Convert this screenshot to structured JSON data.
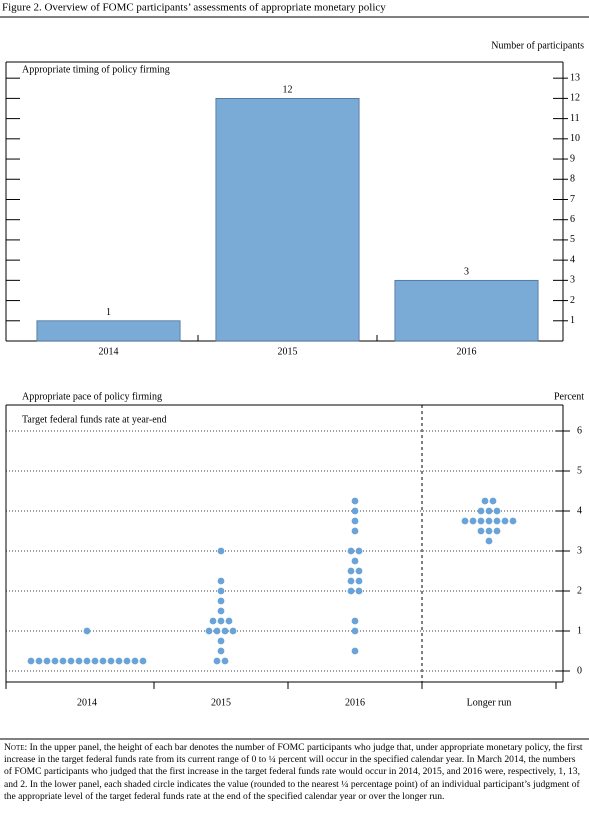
{
  "figure_title": "Figure 2. Overview of FOMC participants’ assessments of appropriate monetary policy",
  "chart_data": [
    {
      "type": "bar",
      "title": "Appropriate timing of policy firming",
      "y_label": "Number of participants",
      "categories": [
        "2014",
        "2015",
        "2016"
      ],
      "values": [
        1,
        12,
        3
      ],
      "color": "#7aaad6",
      "ylim": [
        0,
        13.8
      ],
      "yticks": [
        1,
        2,
        3,
        4,
        5,
        6,
        7,
        8,
        9,
        10,
        11,
        12,
        13
      ]
    },
    {
      "type": "dot",
      "title": "Appropriate pace of policy firming",
      "subtitle": "Target federal funds rate at year-end",
      "y_label": "Percent",
      "categories": [
        "2014",
        "2015",
        "2016",
        "Longer run"
      ],
      "values": [
        [
          1,
          0.25,
          0.25,
          0.25,
          0.25,
          0.25,
          0.25,
          0.25,
          0.25,
          0.25,
          0.25,
          0.25,
          0.25,
          0.25,
          0.25,
          0.25
        ],
        [
          3,
          2.25,
          2,
          1.75,
          1.5,
          1.25,
          1.25,
          1.25,
          1,
          1,
          1,
          1,
          0.75,
          0.5,
          0.25,
          0.25
        ],
        [
          4.25,
          4,
          3.75,
          3.5,
          3,
          3,
          2.75,
          2.5,
          2.5,
          2.25,
          2.25,
          2,
          2,
          1.25,
          1,
          0.5
        ],
        [
          4.25,
          4.25,
          4,
          4,
          4,
          3.75,
          3.75,
          3.75,
          3.75,
          3.75,
          3.75,
          3.75,
          3.5,
          3.5,
          3.5,
          3.25
        ]
      ],
      "color": "#6aa3d8",
      "grid": true,
      "ylim": [
        -0.275,
        6.65
      ],
      "yticks": [
        0,
        1,
        2,
        3,
        4,
        5,
        6
      ]
    }
  ],
  "note_label": "Note:",
  "note": "In the upper panel, the height of each bar denotes the number of FOMC participants who judge that, under appropriate monetary policy, the first increase in the target federal funds rate from its current range of 0 to ¼ percent will occur in the specified calendar year. In March 2014, the numbers of FOMC participants who judged that the first increase in the target federal funds rate would occur in 2014, 2015, and 2016 were, respectively, 1, 13, and 2. In the lower panel, each shaded circle indicates the value (rounded to the nearest ¼ percentage point) of an individual participant’s judgment of the appropriate level of the target federal funds rate at the end of the specified calendar year or over the longer run."
}
